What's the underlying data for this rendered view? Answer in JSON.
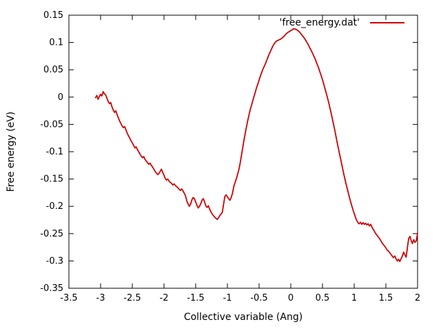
{
  "chart_data": {
    "type": "line",
    "title": "",
    "xlabel": "Collective variable (Ang)",
    "ylabel": "Free energy (eV)",
    "xlim": [
      -3.5,
      2
    ],
    "ylim": [
      -0.35,
      0.15
    ],
    "grid": false,
    "background_color": "#ffffff",
    "axis_color": "#000000",
    "legend": {
      "position": "top-right-inside",
      "entries": [
        {
          "label": "'free_energy.dat'",
          "color": "#cc0000"
        }
      ]
    },
    "xticks": [
      {
        "v": -3.5,
        "label": "-3.5"
      },
      {
        "v": -3,
        "label": "-3"
      },
      {
        "v": -2.5,
        "label": "-2.5"
      },
      {
        "v": -2,
        "label": "-2"
      },
      {
        "v": -1.5,
        "label": "-1.5"
      },
      {
        "v": -1,
        "label": "-1"
      },
      {
        "v": -0.5,
        "label": "-0.5"
      },
      {
        "v": 0,
        "label": "0"
      },
      {
        "v": 0.5,
        "label": "0.5"
      },
      {
        "v": 1,
        "label": "1"
      },
      {
        "v": 1.5,
        "label": "1.5"
      },
      {
        "v": 2,
        "label": "2"
      }
    ],
    "yticks": [
      {
        "v": 0.15,
        "label": "0.15"
      },
      {
        "v": 0.1,
        "label": "0.1"
      },
      {
        "v": 0.05,
        "label": "0.05"
      },
      {
        "v": 0,
        "label": "0"
      },
      {
        "v": -0.05,
        "label": "-0.05"
      },
      {
        "v": -0.1,
        "label": "-0.1"
      },
      {
        "v": -0.15,
        "label": "-0.15"
      },
      {
        "v": -0.2,
        "label": "-0.2"
      },
      {
        "v": -0.25,
        "label": "-0.25"
      },
      {
        "v": -0.3,
        "label": "-0.3"
      },
      {
        "v": -0.35,
        "label": "-0.35"
      }
    ],
    "series": [
      {
        "name": "'free_energy.dat'",
        "color": "#cc0000",
        "points": [
          [
            -3.08,
            -0.001
          ],
          [
            -3.06,
            0.003
          ],
          [
            -3.04,
            -0.004
          ],
          [
            -3.02,
            0.001
          ],
          [
            -3.0,
            0.005
          ],
          [
            -2.98,
            0.002
          ],
          [
            -2.96,
            0.01
          ],
          [
            -2.94,
            0.006
          ],
          [
            -2.92,
            0.004
          ],
          [
            -2.9,
            -0.002
          ],
          [
            -2.88,
            -0.008
          ],
          [
            -2.86,
            -0.012
          ],
          [
            -2.84,
            -0.01
          ],
          [
            -2.82,
            -0.018
          ],
          [
            -2.8,
            -0.024
          ],
          [
            -2.78,
            -0.028
          ],
          [
            -2.76,
            -0.025
          ],
          [
            -2.74,
            -0.032
          ],
          [
            -2.72,
            -0.038
          ],
          [
            -2.7,
            -0.044
          ],
          [
            -2.68,
            -0.048
          ],
          [
            -2.66,
            -0.053
          ],
          [
            -2.64,
            -0.056
          ],
          [
            -2.62,
            -0.054
          ],
          [
            -2.6,
            -0.06
          ],
          [
            -2.58,
            -0.066
          ],
          [
            -2.56,
            -0.071
          ],
          [
            -2.54,
            -0.075
          ],
          [
            -2.52,
            -0.08
          ],
          [
            -2.5,
            -0.084
          ],
          [
            -2.48,
            -0.088
          ],
          [
            -2.46,
            -0.093
          ],
          [
            -2.44,
            -0.091
          ],
          [
            -2.42,
            -0.096
          ],
          [
            -2.4,
            -0.1
          ],
          [
            -2.38,
            -0.104
          ],
          [
            -2.36,
            -0.108
          ],
          [
            -2.34,
            -0.111
          ],
          [
            -2.32,
            -0.109
          ],
          [
            -2.3,
            -0.114
          ],
          [
            -2.28,
            -0.117
          ],
          [
            -2.26,
            -0.12
          ],
          [
            -2.24,
            -0.123
          ],
          [
            -2.22,
            -0.121
          ],
          [
            -2.2,
            -0.125
          ],
          [
            -2.18,
            -0.128
          ],
          [
            -2.16,
            -0.132
          ],
          [
            -2.14,
            -0.136
          ],
          [
            -2.12,
            -0.139
          ],
          [
            -2.1,
            -0.142
          ],
          [
            -2.08,
            -0.14
          ],
          [
            -2.06,
            -0.136
          ],
          [
            -2.04,
            -0.132
          ],
          [
            -2.02,
            -0.138
          ],
          [
            -2.0,
            -0.143
          ],
          [
            -1.98,
            -0.149
          ],
          [
            -1.96,
            -0.152
          ],
          [
            -1.94,
            -0.15
          ],
          [
            -1.92,
            -0.154
          ],
          [
            -1.9,
            -0.156
          ],
          [
            -1.88,
            -0.158
          ],
          [
            -1.86,
            -0.161
          ],
          [
            -1.84,
            -0.159
          ],
          [
            -1.82,
            -0.162
          ],
          [
            -1.8,
            -0.164
          ],
          [
            -1.78,
            -0.166
          ],
          [
            -1.76,
            -0.169
          ],
          [
            -1.74,
            -0.171
          ],
          [
            -1.72,
            -0.168
          ],
          [
            -1.7,
            -0.172
          ],
          [
            -1.68,
            -0.176
          ],
          [
            -1.66,
            -0.181
          ],
          [
            -1.64,
            -0.19
          ],
          [
            -1.62,
            -0.196
          ],
          [
            -1.6,
            -0.2
          ],
          [
            -1.58,
            -0.196
          ],
          [
            -1.56,
            -0.188
          ],
          [
            -1.54,
            -0.184
          ],
          [
            -1.52,
            -0.186
          ],
          [
            -1.5,
            -0.192
          ],
          [
            -1.48,
            -0.198
          ],
          [
            -1.46,
            -0.203
          ],
          [
            -1.44,
            -0.2
          ],
          [
            -1.42,
            -0.195
          ],
          [
            -1.4,
            -0.189
          ],
          [
            -1.38,
            -0.186
          ],
          [
            -1.36,
            -0.192
          ],
          [
            -1.34,
            -0.199
          ],
          [
            -1.32,
            -0.202
          ],
          [
            -1.3,
            -0.199
          ],
          [
            -1.28,
            -0.205
          ],
          [
            -1.26,
            -0.21
          ],
          [
            -1.24,
            -0.214
          ],
          [
            -1.22,
            -0.217
          ],
          [
            -1.2,
            -0.22
          ],
          [
            -1.18,
            -0.222
          ],
          [
            -1.16,
            -0.224
          ],
          [
            -1.14,
            -0.221
          ],
          [
            -1.12,
            -0.217
          ],
          [
            -1.1,
            -0.214
          ],
          [
            -1.08,
            -0.211
          ],
          [
            -1.06,
            -0.196
          ],
          [
            -1.04,
            -0.182
          ],
          [
            -1.02,
            -0.179
          ],
          [
            -1.0,
            -0.183
          ],
          [
            -0.98,
            -0.186
          ],
          [
            -0.96,
            -0.189
          ],
          [
            -0.94,
            -0.184
          ],
          [
            -0.92,
            -0.176
          ],
          [
            -0.9,
            -0.164
          ],
          [
            -0.88,
            -0.157
          ],
          [
            -0.86,
            -0.15
          ],
          [
            -0.84,
            -0.142
          ],
          [
            -0.82,
            -0.133
          ],
          [
            -0.8,
            -0.122
          ],
          [
            -0.78,
            -0.108
          ],
          [
            -0.76,
            -0.094
          ],
          [
            -0.74,
            -0.08
          ],
          [
            -0.72,
            -0.067
          ],
          [
            -0.7,
            -0.055
          ],
          [
            -0.68,
            -0.044
          ],
          [
            -0.66,
            -0.033
          ],
          [
            -0.64,
            -0.023
          ],
          [
            -0.62,
            -0.015
          ],
          [
            -0.6,
            -0.007
          ],
          [
            -0.58,
            0.001
          ],
          [
            -0.56,
            0.009
          ],
          [
            -0.54,
            0.017
          ],
          [
            -0.52,
            0.024
          ],
          [
            -0.5,
            0.031
          ],
          [
            -0.48,
            0.038
          ],
          [
            -0.46,
            0.045
          ],
          [
            -0.44,
            0.051
          ],
          [
            -0.42,
            0.056
          ],
          [
            -0.4,
            0.061
          ],
          [
            -0.38,
            0.067
          ],
          [
            -0.36,
            0.073
          ],
          [
            -0.34,
            0.079
          ],
          [
            -0.32,
            0.084
          ],
          [
            -0.3,
            0.089
          ],
          [
            -0.28,
            0.094
          ],
          [
            -0.26,
            0.098
          ],
          [
            -0.24,
            0.101
          ],
          [
            -0.22,
            0.103
          ],
          [
            -0.2,
            0.104
          ],
          [
            -0.18,
            0.105
          ],
          [
            -0.16,
            0.106
          ],
          [
            -0.14,
            0.108
          ],
          [
            -0.12,
            0.11
          ],
          [
            -0.1,
            0.112
          ],
          [
            -0.08,
            0.115
          ],
          [
            -0.06,
            0.117
          ],
          [
            -0.04,
            0.119
          ],
          [
            -0.02,
            0.12
          ],
          [
            0.0,
            0.122
          ],
          [
            0.02,
            0.123
          ],
          [
            0.04,
            0.125
          ],
          [
            0.06,
            0.125
          ],
          [
            0.08,
            0.124
          ],
          [
            0.1,
            0.123
          ],
          [
            0.12,
            0.121
          ],
          [
            0.14,
            0.119
          ],
          [
            0.16,
            0.116
          ],
          [
            0.18,
            0.113
          ],
          [
            0.2,
            0.11
          ],
          [
            0.22,
            0.107
          ],
          [
            0.24,
            0.103
          ],
          [
            0.26,
            0.099
          ],
          [
            0.28,
            0.095
          ],
          [
            0.3,
            0.09
          ],
          [
            0.32,
            0.086
          ],
          [
            0.34,
            0.081
          ],
          [
            0.36,
            0.076
          ],
          [
            0.38,
            0.071
          ],
          [
            0.4,
            0.065
          ],
          [
            0.42,
            0.059
          ],
          [
            0.44,
            0.053
          ],
          [
            0.46,
            0.046
          ],
          [
            0.48,
            0.039
          ],
          [
            0.5,
            0.032
          ],
          [
            0.52,
            0.024
          ],
          [
            0.54,
            0.015
          ],
          [
            0.56,
            0.007
          ],
          [
            0.58,
            -0.002
          ],
          [
            0.6,
            -0.011
          ],
          [
            0.62,
            -0.021
          ],
          [
            0.64,
            -0.031
          ],
          [
            0.66,
            -0.042
          ],
          [
            0.68,
            -0.053
          ],
          [
            0.7,
            -0.064
          ],
          [
            0.72,
            -0.076
          ],
          [
            0.74,
            -0.088
          ],
          [
            0.76,
            -0.099
          ],
          [
            0.78,
            -0.11
          ],
          [
            0.8,
            -0.121
          ],
          [
            0.82,
            -0.132
          ],
          [
            0.84,
            -0.143
          ],
          [
            0.86,
            -0.153
          ],
          [
            0.88,
            -0.163
          ],
          [
            0.9,
            -0.172
          ],
          [
            0.92,
            -0.181
          ],
          [
            0.94,
            -0.19
          ],
          [
            0.96,
            -0.198
          ],
          [
            0.98,
            -0.206
          ],
          [
            1.0,
            -0.213
          ],
          [
            1.02,
            -0.22
          ],
          [
            1.04,
            -0.226
          ],
          [
            1.06,
            -0.23
          ],
          [
            1.08,
            -0.232
          ],
          [
            1.1,
            -0.229
          ],
          [
            1.12,
            -0.233
          ],
          [
            1.14,
            -0.23
          ],
          [
            1.16,
            -0.233
          ],
          [
            1.18,
            -0.231
          ],
          [
            1.2,
            -0.234
          ],
          [
            1.22,
            -0.232
          ],
          [
            1.24,
            -0.236
          ],
          [
            1.26,
            -0.233
          ],
          [
            1.28,
            -0.238
          ],
          [
            1.3,
            -0.242
          ],
          [
            1.32,
            -0.246
          ],
          [
            1.34,
            -0.25
          ],
          [
            1.36,
            -0.253
          ],
          [
            1.38,
            -0.256
          ],
          [
            1.4,
            -0.259
          ],
          [
            1.42,
            -0.263
          ],
          [
            1.44,
            -0.267
          ],
          [
            1.46,
            -0.27
          ],
          [
            1.48,
            -0.273
          ],
          [
            1.5,
            -0.276
          ],
          [
            1.52,
            -0.28
          ],
          [
            1.54,
            -0.282
          ],
          [
            1.56,
            -0.285
          ],
          [
            1.58,
            -0.288
          ],
          [
            1.6,
            -0.291
          ],
          [
            1.62,
            -0.294
          ],
          [
            1.64,
            -0.291
          ],
          [
            1.66,
            -0.296
          ],
          [
            1.68,
            -0.3
          ],
          [
            1.7,
            -0.297
          ],
          [
            1.72,
            -0.301
          ],
          [
            1.74,
            -0.296
          ],
          [
            1.76,
            -0.291
          ],
          [
            1.78,
            -0.284
          ],
          [
            1.8,
            -0.289
          ],
          [
            1.82,
            -0.293
          ],
          [
            1.84,
            -0.275
          ],
          [
            1.86,
            -0.259
          ],
          [
            1.88,
            -0.255
          ],
          [
            1.9,
            -0.263
          ],
          [
            1.92,
            -0.268
          ],
          [
            1.94,
            -0.261
          ],
          [
            1.96,
            -0.266
          ],
          [
            1.98,
            -0.263
          ],
          [
            2.0,
            -0.249
          ]
        ]
      }
    ]
  }
}
